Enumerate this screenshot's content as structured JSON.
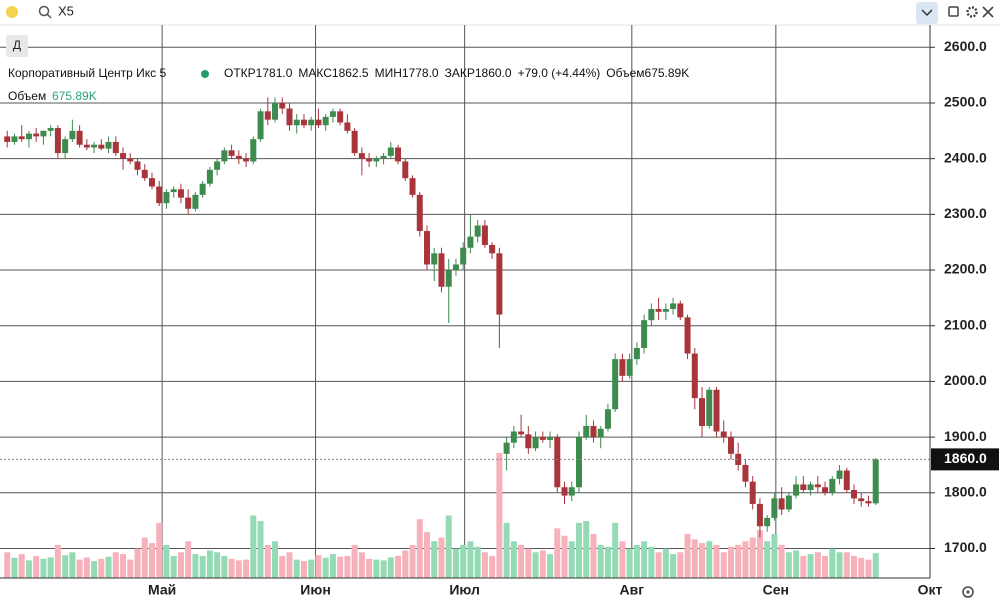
{
  "search": "X5",
  "interval_button": "Д",
  "chart_data": {
    "type": "candlestick",
    "title": "Корпоративный Центр Икс 5",
    "legend": [
      {
        "label": "ОТКР",
        "value": "1781.0"
      },
      {
        "label": "МАКС",
        "value": "1862.5"
      },
      {
        "label": "МИН",
        "value": "1778.0"
      },
      {
        "label": "ЗАКР",
        "value": "1860.0"
      }
    ],
    "change": "+79.0 (+4.44%)",
    "volume_legend": {
      "label": "Объем",
      "value": "675.89K"
    },
    "last_price": {
      "value": 1860,
      "label": "1860.0"
    },
    "up_color": "#3d8b4f",
    "down_color": "#a8353b",
    "volume_up_color": "#94dbb5",
    "volume_down_color": "#f6b1bb",
    "ylim": [
      1647,
      2640
    ],
    "yticks": [
      {
        "value": 1700,
        "label": "1700.0"
      },
      {
        "value": 1800,
        "label": "1800.0"
      },
      {
        "value": 1900,
        "label": "1900.0"
      },
      {
        "value": 2000,
        "label": "2000.0"
      },
      {
        "value": 2100,
        "label": "2100.0"
      },
      {
        "value": 2200,
        "label": "2200.0"
      },
      {
        "value": 2300,
        "label": "2300.0"
      },
      {
        "value": 2400,
        "label": "2400.0"
      },
      {
        "value": 2500,
        "label": "2500.0"
      },
      {
        "value": 2600,
        "label": "2600.0"
      }
    ],
    "xlim": [
      -1,
      127.5
    ],
    "xticks": [
      {
        "value": 21.4,
        "label": "Май"
      },
      {
        "value": 42.6,
        "label": "Июн"
      },
      {
        "value": 63.2,
        "label": "Июл"
      },
      {
        "value": 86.3,
        "label": "Авг"
      },
      {
        "value": 106.2,
        "label": "Сен"
      },
      {
        "value": 127.5,
        "label": "Окт"
      }
    ],
    "grid": true,
    "candles": [
      [
        2440,
        2450,
        2420,
        2430
      ],
      [
        2430,
        2445,
        2425,
        2440
      ],
      [
        2440,
        2460,
        2430,
        2435
      ],
      [
        2435,
        2450,
        2420,
        2445
      ],
      [
        2445,
        2455,
        2430,
        2440
      ],
      [
        2440,
        2450,
        2425,
        2450
      ],
      [
        2450,
        2460,
        2440,
        2455
      ],
      [
        2455,
        2460,
        2400,
        2410
      ],
      [
        2410,
        2440,
        2400,
        2435
      ],
      [
        2435,
        2470,
        2430,
        2450
      ],
      [
        2450,
        2460,
        2420,
        2425
      ],
      [
        2425,
        2435,
        2415,
        2420
      ],
      [
        2420,
        2430,
        2410,
        2425
      ],
      [
        2425,
        2435,
        2415,
        2418
      ],
      [
        2418,
        2440,
        2410,
        2430
      ],
      [
        2430,
        2440,
        2405,
        2410
      ],
      [
        2410,
        2420,
        2380,
        2400
      ],
      [
        2400,
        2410,
        2390,
        2395
      ],
      [
        2395,
        2400,
        2370,
        2380
      ],
      [
        2380,
        2390,
        2360,
        2365
      ],
      [
        2365,
        2375,
        2345,
        2350
      ],
      [
        2350,
        2360,
        2315,
        2320
      ],
      [
        2320,
        2345,
        2310,
        2340
      ],
      [
        2340,
        2350,
        2330,
        2345
      ],
      [
        2345,
        2355,
        2320,
        2330
      ],
      [
        2330,
        2345,
        2300,
        2310
      ],
      [
        2310,
        2340,
        2305,
        2335
      ],
      [
        2335,
        2360,
        2330,
        2355
      ],
      [
        2355,
        2385,
        2350,
        2380
      ],
      [
        2380,
        2400,
        2370,
        2395
      ],
      [
        2395,
        2420,
        2390,
        2415
      ],
      [
        2415,
        2425,
        2400,
        2405
      ],
      [
        2405,
        2415,
        2390,
        2400
      ],
      [
        2400,
        2410,
        2385,
        2395
      ],
      [
        2395,
        2440,
        2390,
        2435
      ],
      [
        2435,
        2490,
        2430,
        2485
      ],
      [
        2485,
        2510,
        2460,
        2470
      ],
      [
        2470,
        2510,
        2465,
        2500
      ],
      [
        2500,
        2510,
        2480,
        2490
      ],
      [
        2490,
        2500,
        2450,
        2460
      ],
      [
        2460,
        2480,
        2445,
        2470
      ],
      [
        2470,
        2480,
        2455,
        2460
      ],
      [
        2460,
        2475,
        2450,
        2470
      ],
      [
        2470,
        2490,
        2455,
        2460
      ],
      [
        2460,
        2480,
        2450,
        2475
      ],
      [
        2475,
        2490,
        2465,
        2485
      ],
      [
        2485,
        2490,
        2460,
        2465
      ],
      [
        2465,
        2480,
        2445,
        2450
      ],
      [
        2450,
        2455,
        2405,
        2410
      ],
      [
        2410,
        2420,
        2370,
        2400
      ],
      [
        2400,
        2410,
        2385,
        2395
      ],
      [
        2395,
        2405,
        2385,
        2400
      ],
      [
        2400,
        2410,
        2390,
        2405
      ],
      [
        2405,
        2430,
        2400,
        2420
      ],
      [
        2420,
        2425,
        2390,
        2395
      ],
      [
        2395,
        2400,
        2360,
        2365
      ],
      [
        2365,
        2370,
        2330,
        2335
      ],
      [
        2335,
        2340,
        2260,
        2270
      ],
      [
        2270,
        2280,
        2200,
        2210
      ],
      [
        2210,
        2240,
        2180,
        2230
      ],
      [
        2230,
        2240,
        2160,
        2170
      ],
      [
        2170,
        2220,
        2105,
        2200
      ],
      [
        2200,
        2220,
        2190,
        2210
      ],
      [
        2210,
        2250,
        2200,
        2240
      ],
      [
        2240,
        2300,
        2230,
        2260
      ],
      [
        2260,
        2290,
        2250,
        2280
      ],
      [
        2280,
        2290,
        2240,
        2245
      ],
      [
        2245,
        2250,
        2220,
        2230
      ],
      [
        2230,
        2240,
        2060,
        2120
      ],
      [
        1870,
        1900,
        1840,
        1890
      ],
      [
        1890,
        1920,
        1880,
        1910
      ],
      [
        1910,
        1940,
        1900,
        1905
      ],
      [
        1905,
        1920,
        1870,
        1880
      ],
      [
        1880,
        1910,
        1875,
        1900
      ],
      [
        1900,
        1910,
        1890,
        1895
      ],
      [
        1895,
        1910,
        1880,
        1900
      ],
      [
        1900,
        1905,
        1800,
        1810
      ],
      [
        1810,
        1820,
        1780,
        1795
      ],
      [
        1795,
        1820,
        1785,
        1810
      ],
      [
        1810,
        1910,
        1800,
        1900
      ],
      [
        1900,
        1940,
        1895,
        1920
      ],
      [
        1920,
        1930,
        1890,
        1900
      ],
      [
        1900,
        1920,
        1880,
        1915
      ],
      [
        1915,
        1960,
        1910,
        1950
      ],
      [
        1950,
        2050,
        1945,
        2040
      ],
      [
        2040,
        2050,
        2000,
        2010
      ],
      [
        2010,
        2050,
        2005,
        2040
      ],
      [
        2040,
        2070,
        2030,
        2060
      ],
      [
        2060,
        2120,
        2050,
        2110
      ],
      [
        2110,
        2140,
        2100,
        2130
      ],
      [
        2130,
        2150,
        2110,
        2125
      ],
      [
        2125,
        2140,
        2110,
        2130
      ],
      [
        2130,
        2150,
        2120,
        2140
      ],
      [
        2140,
        2145,
        2110,
        2115
      ],
      [
        2115,
        2120,
        2040,
        2050
      ],
      [
        2050,
        2060,
        1950,
        1970
      ],
      [
        1970,
        1990,
        1900,
        1920
      ],
      [
        1920,
        1990,
        1915,
        1985
      ],
      [
        1985,
        1990,
        1900,
        1910
      ],
      [
        1910,
        1930,
        1890,
        1900
      ],
      [
        1900,
        1910,
        1860,
        1870
      ],
      [
        1870,
        1890,
        1840,
        1850
      ],
      [
        1850,
        1860,
        1810,
        1820
      ],
      [
        1820,
        1830,
        1770,
        1780
      ],
      [
        1780,
        1790,
        1720,
        1740
      ],
      [
        1740,
        1760,
        1730,
        1755
      ],
      [
        1755,
        1800,
        1750,
        1790
      ],
      [
        1790,
        1810,
        1760,
        1770
      ],
      [
        1770,
        1800,
        1765,
        1795
      ],
      [
        1795,
        1830,
        1790,
        1815
      ],
      [
        1815,
        1830,
        1800,
        1805
      ],
      [
        1805,
        1820,
        1795,
        1815
      ],
      [
        1815,
        1830,
        1800,
        1810
      ],
      [
        1810,
        1820,
        1795,
        1800
      ],
      [
        1800,
        1830,
        1795,
        1825
      ],
      [
        1825,
        1850,
        1815,
        1840
      ],
      [
        1840,
        1845,
        1800,
        1805
      ],
      [
        1805,
        1815,
        1780,
        1790
      ],
      [
        1790,
        1800,
        1775,
        1785
      ],
      [
        1785,
        1795,
        1775,
        1781
      ],
      [
        1781,
        1862.5,
        1778,
        1860
      ]
    ],
    "volumes": [
      700000,
      550000,
      650000,
      480000,
      600000,
      520000,
      560000,
      900000,
      620000,
      700000,
      500000,
      560000,
      460000,
      520000,
      580000,
      700000,
      650000,
      500000,
      800000,
      1100000,
      950000,
      1500000,
      900000,
      600000,
      700000,
      1000000,
      650000,
      600000,
      750000,
      700000,
      600000,
      520000,
      480000,
      500000,
      1700000,
      1550000,
      900000,
      1000000,
      600000,
      700000,
      500000,
      460000,
      500000,
      620000,
      550000,
      650000,
      580000,
      600000,
      900000,
      700000,
      520000,
      500000,
      480000,
      560000,
      600000,
      750000,
      900000,
      1600000,
      1250000,
      1000000,
      1100000,
      1700000,
      800000,
      900000,
      1000000,
      850000,
      700000,
      600000,
      3400000,
      1500000,
      1000000,
      900000,
      800000,
      700000,
      750000,
      650000,
      1350000,
      1150000,
      1000000,
      1500000,
      1550000,
      1200000,
      900000,
      850000,
      1500000,
      1000000,
      800000,
      900000,
      1000000,
      850000,
      700000,
      800000,
      650000,
      700000,
      1200000,
      1050000,
      950000,
      1000000,
      900000,
      700000,
      850000,
      900000,
      1000000,
      1100000,
      1300000,
      1000000,
      1200000,
      900000,
      700000,
      750000,
      600000,
      650000,
      700000,
      600000,
      800000,
      700000,
      700000,
      600000,
      550000,
      500000,
      675890
    ]
  }
}
